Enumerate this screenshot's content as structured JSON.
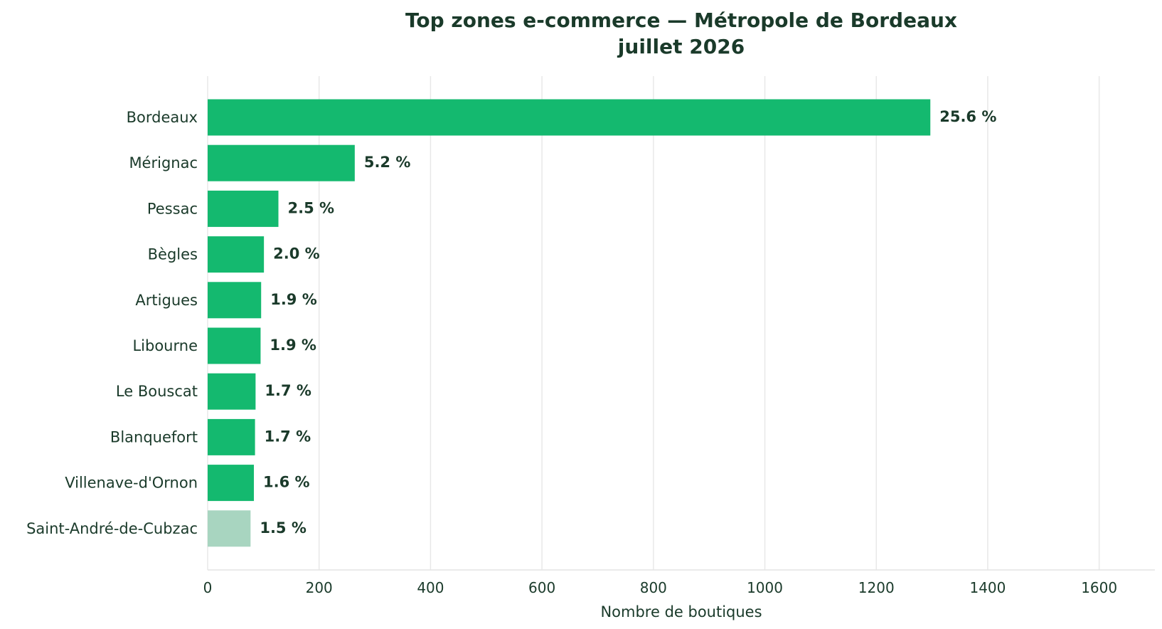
{
  "chart_data": {
    "type": "bar",
    "orientation": "horizontal",
    "title": "Top zones e-commerce — Métropole de Bordeaux",
    "subtitle": "juillet 2026",
    "xlabel": "Nombre de boutiques",
    "ylabel": "",
    "xlim": [
      0,
      1700
    ],
    "xticks": [
      0,
      200,
      400,
      600,
      800,
      1000,
      1200,
      1400,
      1600
    ],
    "grid": "x",
    "legend": "none",
    "categories": [
      "Bordeaux",
      "Mérignac",
      "Pessac",
      "Bègles",
      "Artigues",
      "Libourne",
      "Le Bouscat",
      "Blanquefort",
      "Villenave-d'Ornon",
      "Saint-André-de-Cubzac"
    ],
    "values": [
      1297,
      264,
      127,
      101,
      96,
      95,
      86,
      85,
      83,
      77
    ],
    "labels": [
      "25.6 %",
      "5.2 %",
      "2.5 %",
      "2.0 %",
      "1.9 %",
      "1.9 %",
      "1.7 %",
      "1.7 %",
      "1.6 %",
      "1.5 %"
    ],
    "colors": {
      "bar": "#14b96f",
      "bar_highlight": "#a8d5c0",
      "text": "#1a3a2a",
      "grid": "#e8e8e8"
    },
    "highlight_index": 9
  }
}
